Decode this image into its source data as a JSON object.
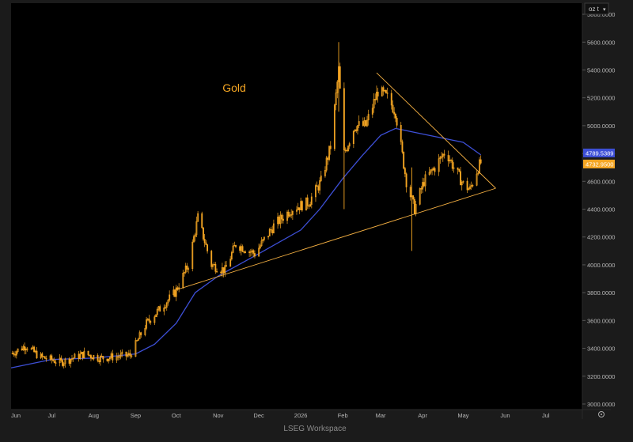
{
  "unit_selector": "oz t",
  "footer": "LSEG Workspace",
  "colors": {
    "background": "#000000",
    "frame": "#1b1b1b",
    "candles": "#f5a623",
    "moving_average": "#3d4fd6",
    "trendlines": "#f5b042",
    "grid": "#333333",
    "axis_text": "#b8b8b8",
    "ma_badge": "#3d4fd6",
    "price_badge": "#f5a623"
  },
  "chart_data": {
    "type": "line",
    "title": "Gold",
    "y_ticks": [
      "3000.0000",
      "3200.0000",
      "3400.0000",
      "3600.0000",
      "3800.0000",
      "4000.0000",
      "4200.0000",
      "4400.0000",
      "4600.0000",
      "4800.0000",
      "5000.0000",
      "5200.0000",
      "5400.0000",
      "5600.0000",
      "5800.0000"
    ],
    "y_tick_values": [
      3000,
      3200,
      3400,
      3600,
      3800,
      4000,
      4200,
      4400,
      4600,
      4800,
      5000,
      5200,
      5400,
      5600,
      5800
    ],
    "ylim": [
      2960,
      5880
    ],
    "x_start": "2025-06-01",
    "x_end": "2026-07-28",
    "x_ticks": [
      {
        "label": "Jun",
        "date": "2025-06-01"
      },
      {
        "label": "Jul",
        "date": "2025-07-01"
      },
      {
        "label": "Aug",
        "date": "2025-08-01"
      },
      {
        "label": "Sep",
        "date": "2025-09-01"
      },
      {
        "label": "Oct",
        "date": "2025-10-01"
      },
      {
        "label": "Nov",
        "date": "2025-11-01"
      },
      {
        "label": "Dec",
        "date": "2025-12-01"
      },
      {
        "label": "2026",
        "date": "2026-01-01"
      },
      {
        "label": "Feb",
        "date": "2026-02-01"
      },
      {
        "label": "Mar",
        "date": "2026-03-01"
      },
      {
        "label": "Apr",
        "date": "2026-04-01"
      },
      {
        "label": "May",
        "date": "2026-05-01"
      },
      {
        "label": "Jun",
        "date": "2026-06-01"
      },
      {
        "label": "Jul",
        "date": "2026-07-01"
      }
    ],
    "price_anchors": [
      [
        "2025-06-01",
        3360
      ],
      [
        "2025-06-12",
        3420
      ],
      [
        "2025-06-22",
        3340
      ],
      [
        "2025-07-08",
        3300
      ],
      [
        "2025-07-25",
        3360
      ],
      [
        "2025-08-06",
        3330
      ],
      [
        "2025-08-28",
        3350
      ],
      [
        "2025-09-09",
        3580
      ],
      [
        "2025-09-30",
        3800
      ],
      [
        "2025-10-10",
        4000
      ],
      [
        "2025-10-17",
        4340
      ],
      [
        "2025-10-27",
        4000
      ],
      [
        "2025-11-06",
        3960
      ],
      [
        "2025-11-14",
        4150
      ],
      [
        "2025-11-28",
        4080
      ],
      [
        "2025-12-12",
        4280
      ],
      [
        "2025-12-25",
        4400
      ],
      [
        "2026-01-07",
        4450
      ],
      [
        "2026-01-16",
        4600
      ],
      [
        "2026-01-23",
        4850
      ],
      [
        "2026-01-29",
        5400
      ],
      [
        "2026-02-02",
        4800
      ],
      [
        "2026-02-10",
        5000
      ],
      [
        "2026-02-18",
        5000
      ],
      [
        "2026-02-27",
        5250
      ],
      [
        "2026-03-06",
        5200
      ],
      [
        "2026-03-12",
        5100
      ],
      [
        "2026-03-20",
        4600
      ],
      [
        "2026-03-26",
        4400
      ],
      [
        "2026-04-02",
        4600
      ],
      [
        "2026-04-10",
        4700
      ],
      [
        "2026-04-18",
        4820
      ],
      [
        "2026-04-24",
        4700
      ],
      [
        "2026-05-01",
        4580
      ],
      [
        "2026-05-06",
        4540
      ],
      [
        "2026-05-12",
        4700
      ],
      [
        "2026-05-14",
        4733
      ]
    ],
    "series": [
      {
        "values": [
          [
            "2025-06-01",
            3260
          ],
          [
            "2025-07-01",
            3320
          ],
          [
            "2025-08-01",
            3330
          ],
          [
            "2025-09-01",
            3360
          ],
          [
            "2025-09-15",
            3430
          ],
          [
            "2025-10-01",
            3580
          ],
          [
            "2025-10-15",
            3800
          ],
          [
            "2025-11-01",
            3920
          ],
          [
            "2025-12-01",
            4080
          ],
          [
            "2026-01-01",
            4250
          ],
          [
            "2026-01-15",
            4400
          ],
          [
            "2026-02-01",
            4620
          ],
          [
            "2026-02-15",
            4780
          ],
          [
            "2026-03-01",
            4930
          ],
          [
            "2026-03-12",
            4980
          ],
          [
            "2026-04-01",
            4940
          ],
          [
            "2026-05-01",
            4880
          ],
          [
            "2026-05-14",
            4790
          ]
        ]
      }
    ],
    "trendlines": [
      {
        "from": [
          "2025-10-01",
          3820
        ],
        "to": [
          "2026-05-25",
          4550
        ]
      },
      {
        "from": [
          "2026-02-26",
          5380
        ],
        "to": [
          "2026-05-25",
          4550
        ]
      }
    ],
    "last_values": {
      "moving_average": "4789.5389",
      "price": "4732.9500"
    },
    "grid": false,
    "legend": "none"
  }
}
